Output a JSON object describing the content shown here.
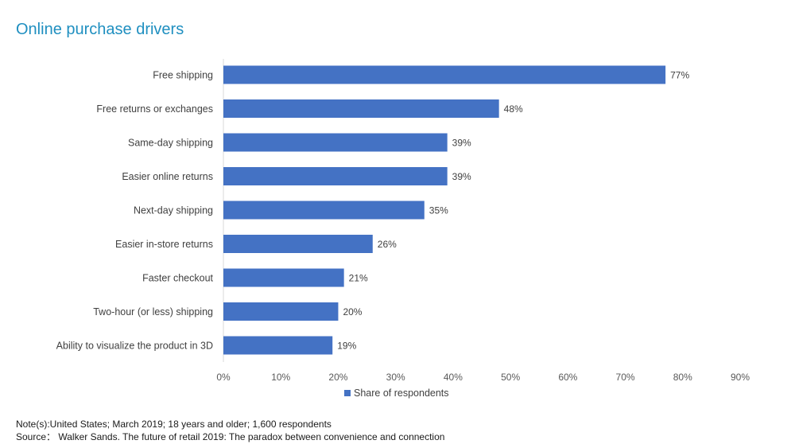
{
  "title": "Online purchase drivers",
  "chart_data": {
    "type": "bar",
    "orientation": "horizontal",
    "categories": [
      "Free shipping",
      "Free returns or exchanges",
      "Same-day shipping",
      "Easier online returns",
      "Next-day shipping",
      "Easier in-store returns",
      "Faster checkout",
      "Two-hour (or less) shipping",
      "Ability to visualize the product in 3D"
    ],
    "series": [
      {
        "name": "Share of respondents",
        "values": [
          77,
          48,
          39,
          39,
          35,
          26,
          21,
          20,
          19
        ],
        "labels": [
          "77%",
          "48%",
          "39%",
          "39%",
          "35%",
          "26%",
          "21%",
          "20%",
          "19%"
        ]
      }
    ],
    "xlim": [
      0,
      90
    ],
    "xticks": [
      "0%",
      "10%",
      "20%",
      "30%",
      "40%",
      "50%",
      "60%",
      "70%",
      "80%",
      "90%"
    ],
    "grid": false,
    "legend": "bottom",
    "bar_color": "#4472c4"
  },
  "notes": {
    "note": "Note(s):United States; March 2019; 18 years and older; 1,600 respondents",
    "source": "Source： Walker Sands. The future of retail 2019: The paradox between convenience and connection"
  }
}
